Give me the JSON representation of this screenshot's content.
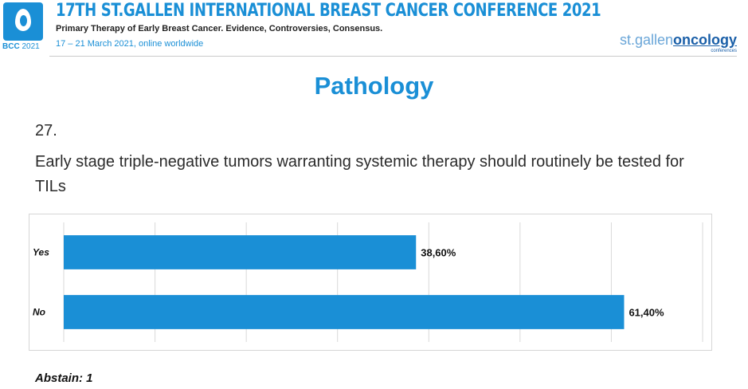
{
  "header": {
    "logo_text": "BCC",
    "logo_year": "2021",
    "title": "17TH ST.GALLEN INTERNATIONAL BREAST CANCER CONFERENCE 2021",
    "subtitle": "Primary Therapy of Early Breast Cancer. Evidence, Controversies, Consensus.",
    "dates": "17 – 21 March 2021, online worldwide",
    "brand_st": "st.",
    "brand_gallen": "gallen",
    "brand_oncology": "oncology",
    "brand_conferences": "conferences"
  },
  "slide": {
    "section_title": "Pathology",
    "question_number": "27.",
    "question_text": "Early stage triple-negative tumors warranting systemic therapy should routinely be tested for TILs"
  },
  "colors": {
    "accent": "#1a8fd6",
    "bar": "#1a8fd6"
  },
  "chart_data": {
    "type": "bar",
    "orientation": "horizontal",
    "categories": [
      "Yes",
      "No"
    ],
    "values": [
      38.6,
      61.4
    ],
    "value_labels": [
      "38,60%",
      "61,40%"
    ],
    "xlim": [
      0,
      70
    ],
    "grid": true,
    "legend": "none",
    "title": "",
    "xlabel": "",
    "ylabel": ""
  },
  "footer": {
    "abstain": "Abstain: 1"
  }
}
